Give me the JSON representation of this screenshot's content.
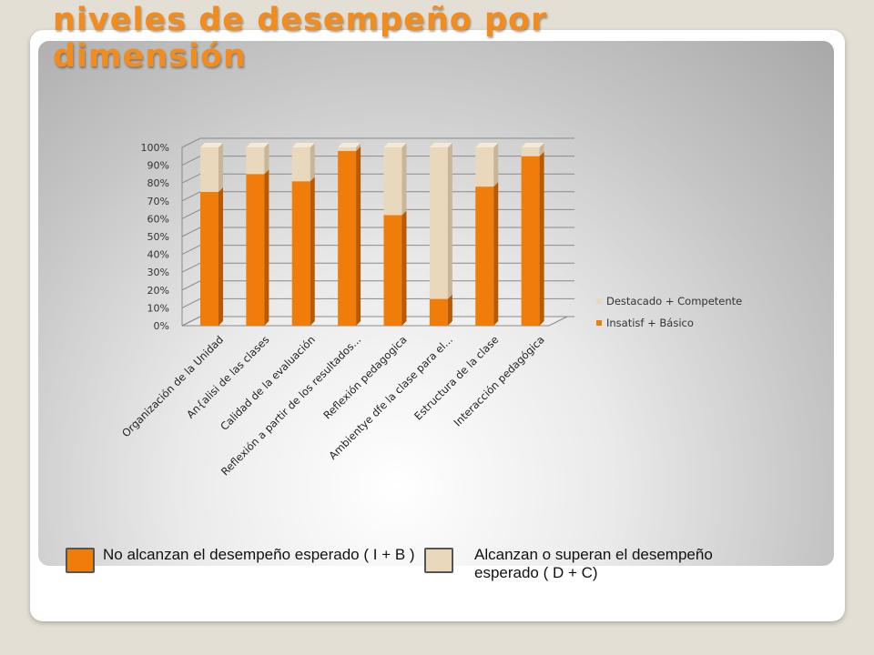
{
  "title": {
    "line1": "niveles de desempeño por",
    "line2": "dimensión"
  },
  "colors": {
    "accent": "#f28c1c",
    "insatisf": "#f07d0a",
    "insatisf_side": "#b85a00",
    "destacado": "#ead8bc",
    "destacado_side": "#c9b699"
  },
  "chart_data": {
    "type": "bar",
    "stacked": true,
    "percent": true,
    "ylim": [
      0,
      100
    ],
    "yticks": [
      "0%",
      "10%",
      "20%",
      "30%",
      "40%",
      "50%",
      "60%",
      "70%",
      "80%",
      "90%",
      "100%"
    ],
    "categories": [
      "Organización de la Unidad",
      "An{alisi de las clases",
      "Calidad de la evaluación",
      "Reflexión a partir de los resultados...",
      "Reflexión pedagogica",
      "Ambientye dfe la clase para el...",
      "Estructura de la clase",
      "Interacción pedagógica"
    ],
    "series": [
      {
        "name": "Insatisf + Básico",
        "values": [
          75,
          85,
          81,
          98,
          62,
          15,
          78,
          95
        ]
      },
      {
        "name": "Destacado + Competente",
        "values": [
          25,
          15,
          19,
          2,
          38,
          85,
          22,
          5
        ]
      }
    ],
    "legend": "right",
    "grid": true
  },
  "bottom_legend": {
    "no_alcanzan": "No alcanzan el desempeño esperado ( I + B )",
    "alcanzan": "Alcanzan o superan el desempeño esperado ( D + C)"
  }
}
